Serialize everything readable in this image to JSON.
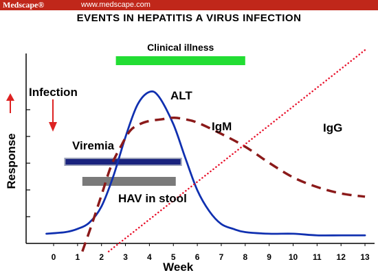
{
  "header": {
    "brand": "Medscape®",
    "site": "www.medscape.com",
    "banner_color": "#c0271a"
  },
  "chart_data": {
    "type": "line",
    "title": "EVENTS IN HEPATITIS A VIRUS INFECTION",
    "xlabel": "Week",
    "ylabel": "Response",
    "xlim": [
      -1,
      13
    ],
    "ylim": [
      0,
      1
    ],
    "x_ticks": [
      "0",
      "1",
      "2",
      "3",
      "4",
      "5",
      "6",
      "7",
      "8",
      "9",
      "10",
      "11",
      "12",
      "13"
    ],
    "y_tick_values": [
      0.2,
      0.4,
      0.6,
      0.8,
      1.0
    ],
    "grid": false,
    "series": [
      {
        "name": "ALT",
        "color": "#1030b0",
        "style": "solid",
        "x": [
          -0.3,
          0.5,
          1.0,
          1.5,
          2.0,
          2.5,
          3.0,
          3.5,
          4.0,
          4.4,
          5.0,
          5.5,
          6.0,
          6.5,
          7.0,
          7.5,
          8.0,
          9.0,
          10.0,
          11.0,
          12.0,
          13.0
        ],
        "y": [
          0.06,
          0.07,
          0.09,
          0.13,
          0.23,
          0.42,
          0.66,
          0.86,
          0.94,
          0.91,
          0.74,
          0.53,
          0.33,
          0.2,
          0.12,
          0.09,
          0.07,
          0.06,
          0.06,
          0.05,
          0.05,
          0.05
        ]
      },
      {
        "name": "IgM",
        "color": "#8b1a1a",
        "style": "dashed",
        "x": [
          1.2,
          1.6,
          2.0,
          2.4,
          2.8,
          3.2,
          3.6,
          4.0,
          4.5,
          5.0,
          5.5,
          6.0,
          7.0,
          8.0,
          9.0,
          10.0,
          11.0,
          12.0,
          13.0
        ],
        "y": [
          -0.05,
          0.12,
          0.3,
          0.48,
          0.6,
          0.7,
          0.74,
          0.76,
          0.77,
          0.78,
          0.77,
          0.75,
          0.68,
          0.6,
          0.5,
          0.41,
          0.35,
          0.31,
          0.29
        ]
      },
      {
        "name": "IgG",
        "color": "#e8102a",
        "style": "dotted",
        "x": [
          2.3,
          13.0
        ],
        "y": [
          -0.05,
          1.2
        ]
      }
    ],
    "bars": [
      {
        "name": "Clinical illness",
        "x_start": 2.6,
        "x_end": 8.0,
        "color": "#22dd33"
      },
      {
        "name": "Viremia",
        "x_start": 0.5,
        "x_end": 5.3,
        "color": "#1a237e"
      },
      {
        "name": "HAV in stool",
        "x_start": 1.2,
        "x_end": 5.1,
        "color": "#7a7a7a"
      }
    ],
    "annotations": {
      "infection": "Infection",
      "clinical": "Clinical illness",
      "alt": "ALT",
      "igm": "IgM",
      "igg": "IgG",
      "viremia": "Viremia",
      "stool": "HAV in stool"
    },
    "arrow_color": "#dd2222"
  }
}
